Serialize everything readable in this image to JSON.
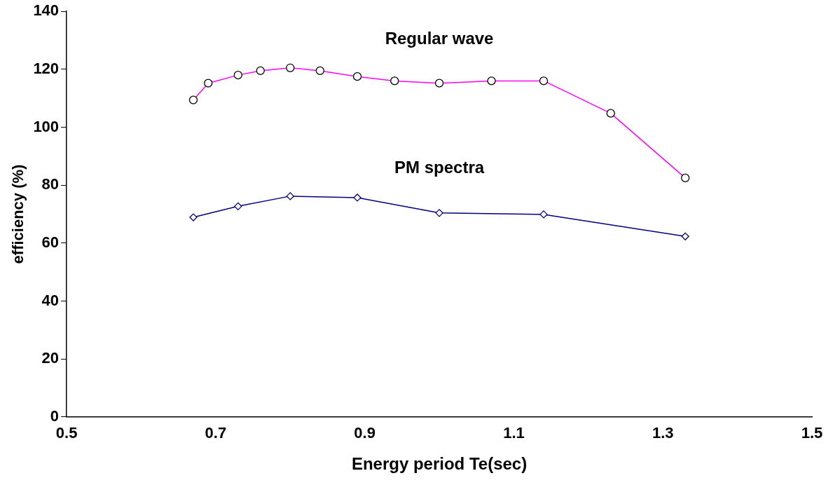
{
  "chart_data": {
    "type": "line",
    "xlabel": "Energy period Te(sec)",
    "ylabel": "efficiency (%)",
    "xlim": [
      0.5,
      1.5
    ],
    "xticks": [
      0.5,
      0.7,
      0.9,
      1.1,
      1.3,
      1.5
    ],
    "ylim": [
      0,
      140
    ],
    "yticks": [
      0,
      20,
      40,
      60,
      80,
      100,
      120,
      140
    ],
    "grid": false,
    "legend": false,
    "series": [
      {
        "name": "Regular wave",
        "color": "#ff00ff",
        "marker": "circle",
        "x": [
          0.67,
          0.69,
          0.73,
          0.76,
          0.8,
          0.84,
          0.89,
          0.94,
          1,
          1.07,
          1.14,
          1.23,
          1.33
        ],
        "values": [
          109.4,
          115.2,
          118,
          119.5,
          120.5,
          119.5,
          117.5,
          116,
          115.2,
          116,
          116,
          104.8,
          82.5
        ]
      },
      {
        "name": "PM spectra",
        "color": "#000080",
        "marker": "diamond",
        "x": [
          0.67,
          0.73,
          0.8,
          0.89,
          1,
          1.14,
          1.33
        ],
        "values": [
          68.9,
          72.7,
          76.2,
          75.7,
          70.4,
          69.9,
          62.3
        ]
      }
    ]
  }
}
